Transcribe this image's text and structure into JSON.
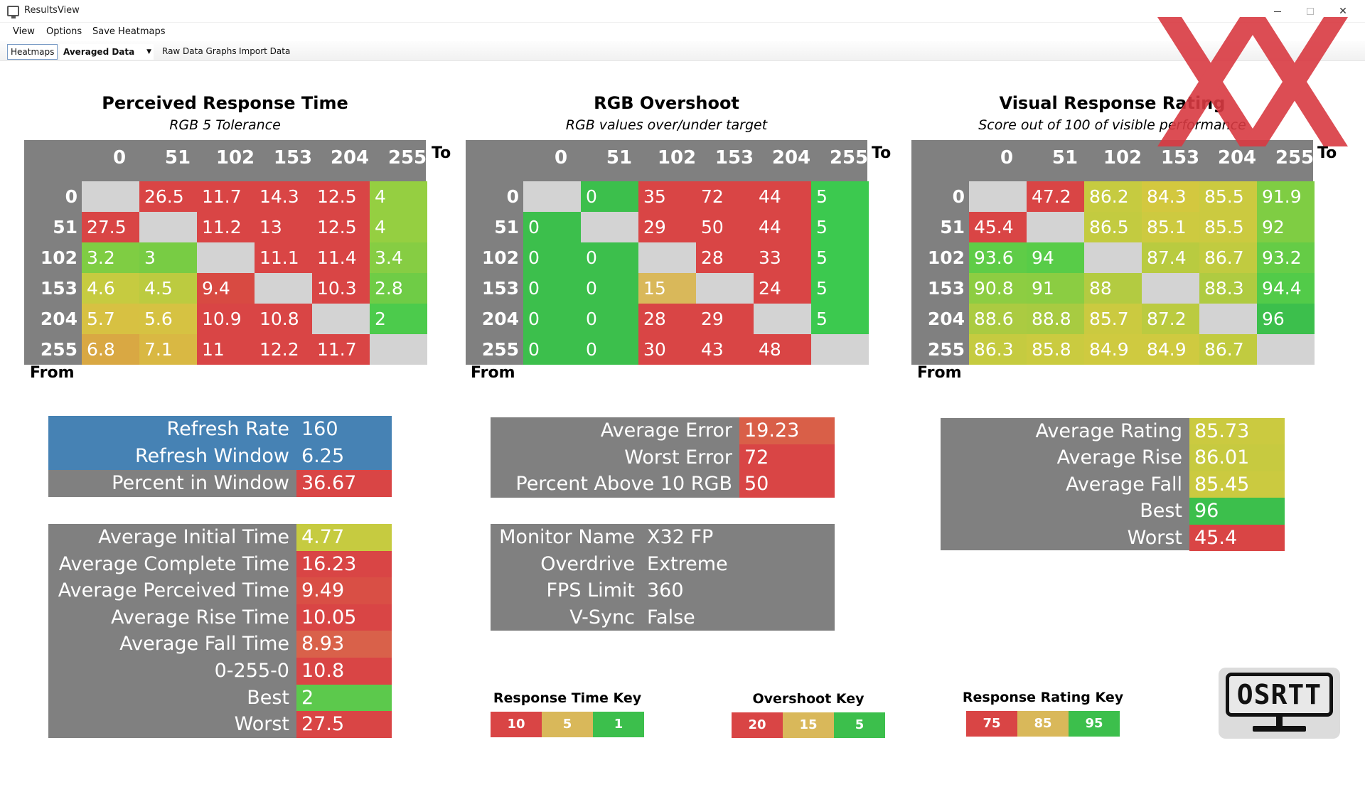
{
  "window": {
    "title": "ResultsView",
    "minimize": "—",
    "close": "✕"
  },
  "menu": {
    "items": [
      "View",
      "Options",
      "Save Heatmaps"
    ]
  },
  "toolbar": {
    "heatmaps_tab": "Heatmaps",
    "data_select": "Averaged Data",
    "raw_data_graphs": "Raw Data Graphs",
    "import_data": "Import Data"
  },
  "heatmaps": [
    {
      "title": "Perceived Response Time",
      "subtitle": "RGB 5 Tolerance",
      "to_label": "To",
      "from_label": "From",
      "columns": [
        "0",
        "51",
        "102",
        "153",
        "204",
        "255"
      ],
      "rows": [
        {
          "label": "0",
          "cells": [
            {
              "v": "",
              "c": "#d3d3d3"
            },
            {
              "v": "26.5",
              "c": "#d94545"
            },
            {
              "v": "11.7",
              "c": "#d94545"
            },
            {
              "v": "14.3",
              "c": "#d94545"
            },
            {
              "v": "12.5",
              "c": "#d94545"
            },
            {
              "v": "4",
              "c": "#95cf41"
            }
          ]
        },
        {
          "label": "51",
          "cells": [
            {
              "v": "27.5",
              "c": "#d94545"
            },
            {
              "v": "",
              "c": "#d3d3d3"
            },
            {
              "v": "11.2",
              "c": "#d94545"
            },
            {
              "v": "13",
              "c": "#d94545"
            },
            {
              "v": "12.5",
              "c": "#d94545"
            },
            {
              "v": "4",
              "c": "#95cf41"
            }
          ]
        },
        {
          "label": "102",
          "cells": [
            {
              "v": "3.2",
              "c": "#7fcd43"
            },
            {
              "v": "3",
              "c": "#78cc44"
            },
            {
              "v": "",
              "c": "#d3d3d3"
            },
            {
              "v": "11.1",
              "c": "#d94545"
            },
            {
              "v": "11.4",
              "c": "#d94545"
            },
            {
              "v": "3.4",
              "c": "#86cd43"
            }
          ]
        },
        {
          "label": "153",
          "cells": [
            {
              "v": "4.6",
              "c": "#c6cb40"
            },
            {
              "v": "4.5",
              "c": "#bccb40"
            },
            {
              "v": "9.4",
              "c": "#d84a42"
            },
            {
              "v": "",
              "c": "#d3d3d3"
            },
            {
              "v": "10.3",
              "c": "#d94545"
            },
            {
              "v": "2.8",
              "c": "#6fcc46"
            }
          ]
        },
        {
          "label": "204",
          "cells": [
            {
              "v": "5.7",
              "c": "#d7c142"
            },
            {
              "v": "5.6",
              "c": "#d6c242"
            },
            {
              "v": "10.9",
              "c": "#d94545"
            },
            {
              "v": "10.8",
              "c": "#d94545"
            },
            {
              "v": "",
              "c": "#d3d3d3"
            },
            {
              "v": "2",
              "c": "#4ccb4c"
            }
          ]
        },
        {
          "label": "255",
          "cells": [
            {
              "v": "6.8",
              "c": "#d9a843"
            },
            {
              "v": "7.1",
              "c": "#d9b843"
            },
            {
              "v": "11",
              "c": "#d94545"
            },
            {
              "v": "12.2",
              "c": "#d94545"
            },
            {
              "v": "11.7",
              "c": "#d94545"
            },
            {
              "v": "",
              "c": "#d3d3d3"
            }
          ]
        }
      ]
    },
    {
      "title": "RGB Overshoot",
      "subtitle": "RGB values over/under target",
      "to_label": "To",
      "from_label": "From",
      "columns": [
        "0",
        "51",
        "102",
        "153",
        "204",
        "255"
      ],
      "rows": [
        {
          "label": "0",
          "cells": [
            {
              "v": "",
              "c": "#d3d3d3"
            },
            {
              "v": "0",
              "c": "#3cbf4c"
            },
            {
              "v": "35",
              "c": "#d94545"
            },
            {
              "v": "72",
              "c": "#d94545"
            },
            {
              "v": "44",
              "c": "#d94545"
            },
            {
              "v": "5",
              "c": "#3cc94f"
            }
          ]
        },
        {
          "label": "51",
          "cells": [
            {
              "v": "0",
              "c": "#3cbf4c"
            },
            {
              "v": "",
              "c": "#d3d3d3"
            },
            {
              "v": "29",
              "c": "#d94545"
            },
            {
              "v": "50",
              "c": "#d94545"
            },
            {
              "v": "44",
              "c": "#d94545"
            },
            {
              "v": "5",
              "c": "#3cc94f"
            }
          ]
        },
        {
          "label": "102",
          "cells": [
            {
              "v": "0",
              "c": "#3cbf4c"
            },
            {
              "v": "0",
              "c": "#3cbf4c"
            },
            {
              "v": "",
              "c": "#d3d3d3"
            },
            {
              "v": "28",
              "c": "#d94545"
            },
            {
              "v": "33",
              "c": "#d94545"
            },
            {
              "v": "5",
              "c": "#3cc94f"
            }
          ]
        },
        {
          "label": "153",
          "cells": [
            {
              "v": "0",
              "c": "#3cbf4c"
            },
            {
              "v": "0",
              "c": "#3cbf4c"
            },
            {
              "v": "15",
              "c": "#d9b85a"
            },
            {
              "v": "",
              "c": "#d3d3d3"
            },
            {
              "v": "24",
              "c": "#d94545"
            },
            {
              "v": "5",
              "c": "#3cc94f"
            }
          ]
        },
        {
          "label": "204",
          "cells": [
            {
              "v": "0",
              "c": "#3cbf4c"
            },
            {
              "v": "0",
              "c": "#3cbf4c"
            },
            {
              "v": "28",
              "c": "#d94545"
            },
            {
              "v": "29",
              "c": "#d94545"
            },
            {
              "v": "",
              "c": "#d3d3d3"
            },
            {
              "v": "5",
              "c": "#3cc94f"
            }
          ]
        },
        {
          "label": "255",
          "cells": [
            {
              "v": "0",
              "c": "#3cbf4c"
            },
            {
              "v": "0",
              "c": "#3cbf4c"
            },
            {
              "v": "30",
              "c": "#d94545"
            },
            {
              "v": "43",
              "c": "#d94545"
            },
            {
              "v": "48",
              "c": "#d94545"
            },
            {
              "v": "",
              "c": "#d3d3d3"
            }
          ]
        }
      ]
    },
    {
      "title": "Visual Response Rating",
      "subtitle": "Score out of 100 of visible performance",
      "to_label": "To",
      "from_label": "From",
      "columns": [
        "0",
        "51",
        "102",
        "153",
        "204",
        "255"
      ],
      "rows": [
        {
          "label": "0",
          "cells": [
            {
              "v": "",
              "c": "#d3d3d3"
            },
            {
              "v": "47.2",
              "c": "#d94545"
            },
            {
              "v": "86.2",
              "c": "#c6cb40"
            },
            {
              "v": "84.3",
              "c": "#d3c83f"
            },
            {
              "v": "85.5",
              "c": "#cbca40"
            },
            {
              "v": "91.9",
              "c": "#7fcd43"
            }
          ]
        },
        {
          "label": "51",
          "cells": [
            {
              "v": "45.4",
              "c": "#d94545"
            },
            {
              "v": "",
              "c": "#d3d3d3"
            },
            {
              "v": "86.5",
              "c": "#c3cb40"
            },
            {
              "v": "85.1",
              "c": "#cdca40"
            },
            {
              "v": "85.5",
              "c": "#cbca40"
            },
            {
              "v": "92",
              "c": "#7fcd43"
            }
          ]
        },
        {
          "label": "102",
          "cells": [
            {
              "v": "93.6",
              "c": "#5fcc47"
            },
            {
              "v": "94",
              "c": "#58cc48"
            },
            {
              "v": "",
              "c": "#d3d3d3"
            },
            {
              "v": "87.4",
              "c": "#b9cb40"
            },
            {
              "v": "86.7",
              "c": "#c1cb40"
            },
            {
              "v": "93.2",
              "c": "#65cc46"
            }
          ]
        },
        {
          "label": "153",
          "cells": [
            {
              "v": "90.8",
              "c": "#8dcd42"
            },
            {
              "v": "91",
              "c": "#8bcd42"
            },
            {
              "v": "88",
              "c": "#b3cb41"
            },
            {
              "v": "",
              "c": "#d3d3d3"
            },
            {
              "v": "88.3",
              "c": "#afcb41"
            },
            {
              "v": "94.4",
              "c": "#52cb49"
            }
          ]
        },
        {
          "label": "204",
          "cells": [
            {
              "v": "88.6",
              "c": "#abcb41"
            },
            {
              "v": "88.8",
              "c": "#a8cb41"
            },
            {
              "v": "85.7",
              "c": "#cbca40"
            },
            {
              "v": "87.2",
              "c": "#bbcb40"
            },
            {
              "v": "",
              "c": "#d3d3d3"
            },
            {
              "v": "96",
              "c": "#3cbf4c"
            }
          ]
        },
        {
          "label": "255",
          "cells": [
            {
              "v": "86.3",
              "c": "#c5cb40"
            },
            {
              "v": "85.8",
              "c": "#cacb40"
            },
            {
              "v": "84.9",
              "c": "#cfca40"
            },
            {
              "v": "84.9",
              "c": "#cfca40"
            },
            {
              "v": "86.7",
              "c": "#c1cb40"
            },
            {
              "v": "",
              "c": "#d3d3d3"
            }
          ]
        }
      ]
    }
  ],
  "refresh_stats": [
    {
      "label": "Refresh Rate",
      "value": "160",
      "label_bg": "#4682b4",
      "value_bg": "#4682b4"
    },
    {
      "label": "Refresh Window",
      "value": "6.25",
      "label_bg": "#4682b4",
      "value_bg": "#4682b4"
    },
    {
      "label": "Percent in Window",
      "value": "36.67",
      "label_bg": "#808080",
      "value_bg": "#d94545"
    }
  ],
  "time_stats": [
    {
      "label": "Average Initial Time",
      "value": "4.77",
      "value_bg": "#c6cb40"
    },
    {
      "label": "Average Complete Time",
      "value": "16.23",
      "value_bg": "#d94545"
    },
    {
      "label": "Average Perceived Time",
      "value": "9.49",
      "value_bg": "#d94f45"
    },
    {
      "label": "Average Rise Time",
      "value": "10.05",
      "value_bg": "#d94545"
    },
    {
      "label": "Average Fall Time",
      "value": "8.93",
      "value_bg": "#d9614a"
    },
    {
      "label": "0-255-0",
      "value": "10.8",
      "value_bg": "#d94545"
    },
    {
      "label": "Best",
      "value": "2",
      "value_bg": "#5cc94c"
    },
    {
      "label": "Worst",
      "value": "27.5",
      "value_bg": "#d94545"
    }
  ],
  "overshoot_stats": [
    {
      "label": "Average Error",
      "value": "19.23",
      "value_bg": "#d95f48"
    },
    {
      "label": "Worst Error",
      "value": "72",
      "value_bg": "#d94545"
    },
    {
      "label": "Percent Above 10 RGB",
      "value": "50",
      "value_bg": "#d94545"
    }
  ],
  "run_info": [
    {
      "label": "Monitor Name",
      "value": "X32 FP"
    },
    {
      "label": "Overdrive",
      "value": "Extreme"
    },
    {
      "label": "FPS Limit",
      "value": "360"
    },
    {
      "label": "V-Sync",
      "value": "False"
    }
  ],
  "rating_stats": [
    {
      "label": "Average Rating",
      "value": "85.73",
      "value_bg": "#cbca40"
    },
    {
      "label": "Average Rise",
      "value": "86.01",
      "value_bg": "#c7ca40"
    },
    {
      "label": "Average Fall",
      "value": "85.45",
      "value_bg": "#cbca40"
    },
    {
      "label": "Best",
      "value": "96",
      "value_bg": "#3cbf4c"
    },
    {
      "label": "Worst",
      "value": "45.4",
      "value_bg": "#d94545"
    }
  ],
  "keys": [
    {
      "title": "Response Time Key",
      "cells": [
        {
          "v": "10",
          "c": "#d94545"
        },
        {
          "v": "5",
          "c": "#d9b85a"
        },
        {
          "v": "1",
          "c": "#3cbf4c"
        }
      ]
    },
    {
      "title": "Overshoot Key",
      "cells": [
        {
          "v": "20",
          "c": "#d94545"
        },
        {
          "v": "15",
          "c": "#d9b85a"
        },
        {
          "v": "5",
          "c": "#3cbf4c"
        }
      ]
    },
    {
      "title": "Response Rating Key",
      "cells": [
        {
          "v": "75",
          "c": "#d94545"
        },
        {
          "v": "85",
          "c": "#d9b85a"
        },
        {
          "v": "95",
          "c": "#3cbf4c"
        }
      ]
    }
  ],
  "logo": {
    "text": "OSRTT"
  },
  "watermark": {
    "icon": "xx-watermark-icon",
    "color": "#d93a42"
  }
}
